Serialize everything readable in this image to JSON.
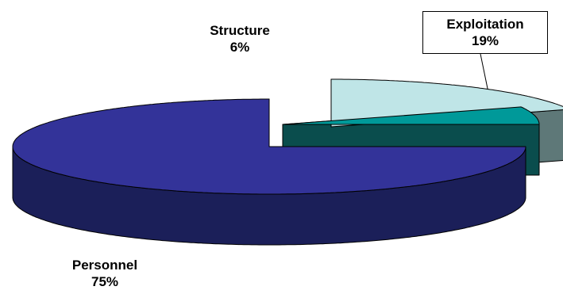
{
  "chart_data": {
    "type": "pie",
    "style": "3d-exploded",
    "title": "",
    "slices": [
      {
        "name": "Exploitation",
        "value": 19,
        "label": "19%",
        "color": "#BFE5E7",
        "side_color": "#5E7878"
      },
      {
        "name": "Structure",
        "value": 6,
        "label": "6%",
        "color": "#009999",
        "side_color": "#0A4D4D"
      },
      {
        "name": "Personnel",
        "value": 75,
        "label": "75%",
        "color": "#333399",
        "side_color": "#1B1F59"
      }
    ],
    "legend": "none",
    "data_labels": "outside"
  }
}
